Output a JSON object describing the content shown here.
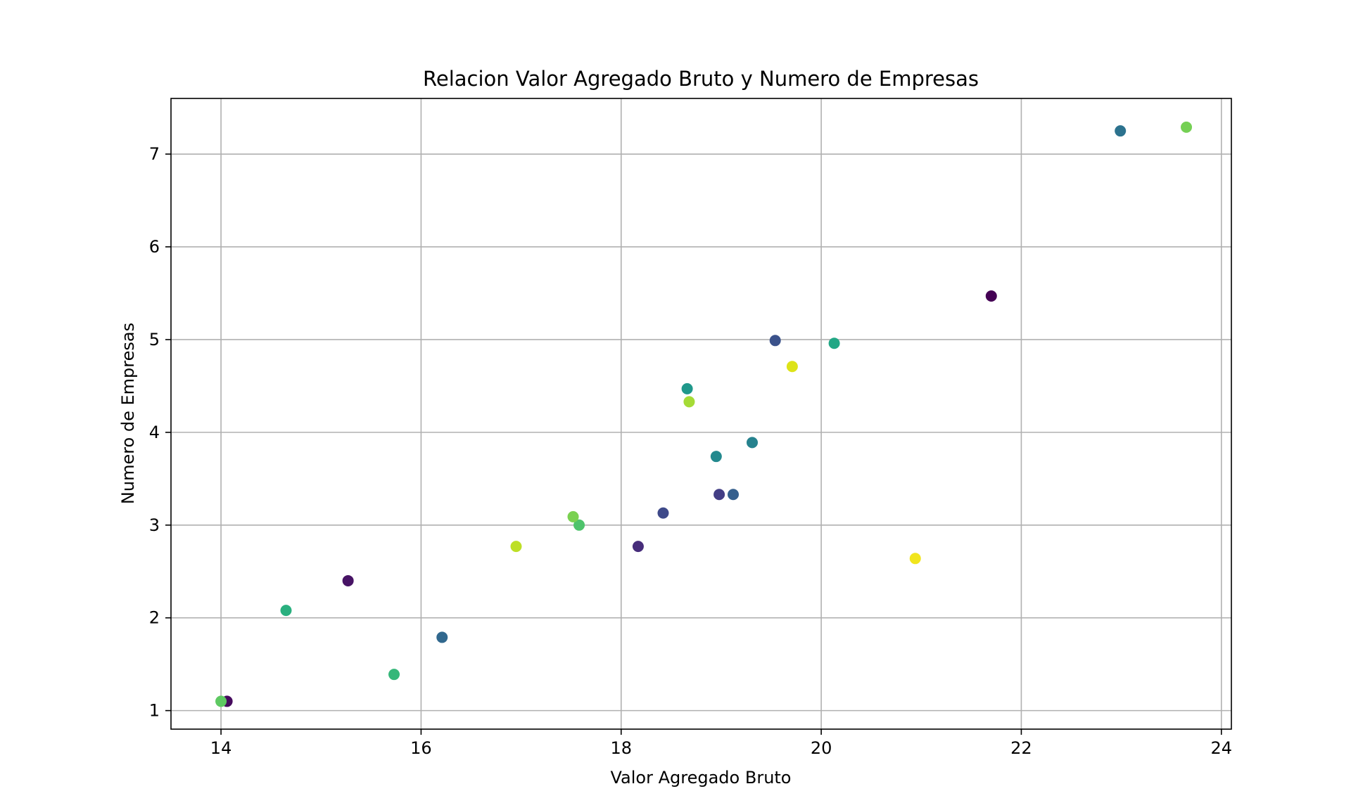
{
  "chart_data": {
    "type": "scatter",
    "title": "Relacion Valor Agregado Bruto y Numero de Empresas",
    "xlabel": "Valor Agregado Bruto",
    "ylabel": "Numero de Empresas",
    "xlim": [
      13.5,
      24.1
    ],
    "ylim": [
      0.8,
      7.6
    ],
    "xticks": [
      14,
      16,
      18,
      20,
      22,
      24
    ],
    "yticks": [
      1,
      2,
      3,
      4,
      5,
      6,
      7
    ],
    "grid": true,
    "legend": "none",
    "colormap": "viridis",
    "points": [
      {
        "x": 21.7,
        "y": 5.47,
        "color": "#440154"
      },
      {
        "x": 14.06,
        "y": 1.1,
        "color": "#460b5e"
      },
      {
        "x": 15.27,
        "y": 2.4,
        "color": "#471365"
      },
      {
        "x": 18.17,
        "y": 2.77,
        "color": "#472d7b"
      },
      {
        "x": 18.98,
        "y": 3.33,
        "color": "#433e85"
      },
      {
        "x": 18.42,
        "y": 3.13,
        "color": "#3e4989"
      },
      {
        "x": 19.54,
        "y": 4.99,
        "color": "#3b528b"
      },
      {
        "x": 19.12,
        "y": 3.33,
        "color": "#355f8d"
      },
      {
        "x": 16.21,
        "y": 1.79,
        "color": "#31688e"
      },
      {
        "x": 22.99,
        "y": 7.25,
        "color": "#2c728e"
      },
      {
        "x": 19.31,
        "y": 3.89,
        "color": "#26828e"
      },
      {
        "x": 18.95,
        "y": 3.74,
        "color": "#23898e"
      },
      {
        "x": 18.66,
        "y": 4.47,
        "color": "#1f988b"
      },
      {
        "x": 20.13,
        "y": 4.96,
        "color": "#22a785"
      },
      {
        "x": 14.65,
        "y": 2.08,
        "color": "#2ab07f"
      },
      {
        "x": 15.73,
        "y": 1.39,
        "color": "#35b779"
      },
      {
        "x": 17.58,
        "y": 3.0,
        "color": "#4ec36b"
      },
      {
        "x": 14.0,
        "y": 1.1,
        "color": "#5ec962"
      },
      {
        "x": 23.65,
        "y": 7.29,
        "color": "#75d054"
      },
      {
        "x": 17.52,
        "y": 3.09,
        "color": "#7ad151"
      },
      {
        "x": 18.68,
        "y": 4.33,
        "color": "#a5db36"
      },
      {
        "x": 16.95,
        "y": 2.77,
        "color": "#bddf26"
      },
      {
        "x": 19.71,
        "y": 4.71,
        "color": "#dde318"
      },
      {
        "x": 20.94,
        "y": 2.64,
        "color": "#f1e51d"
      }
    ]
  }
}
